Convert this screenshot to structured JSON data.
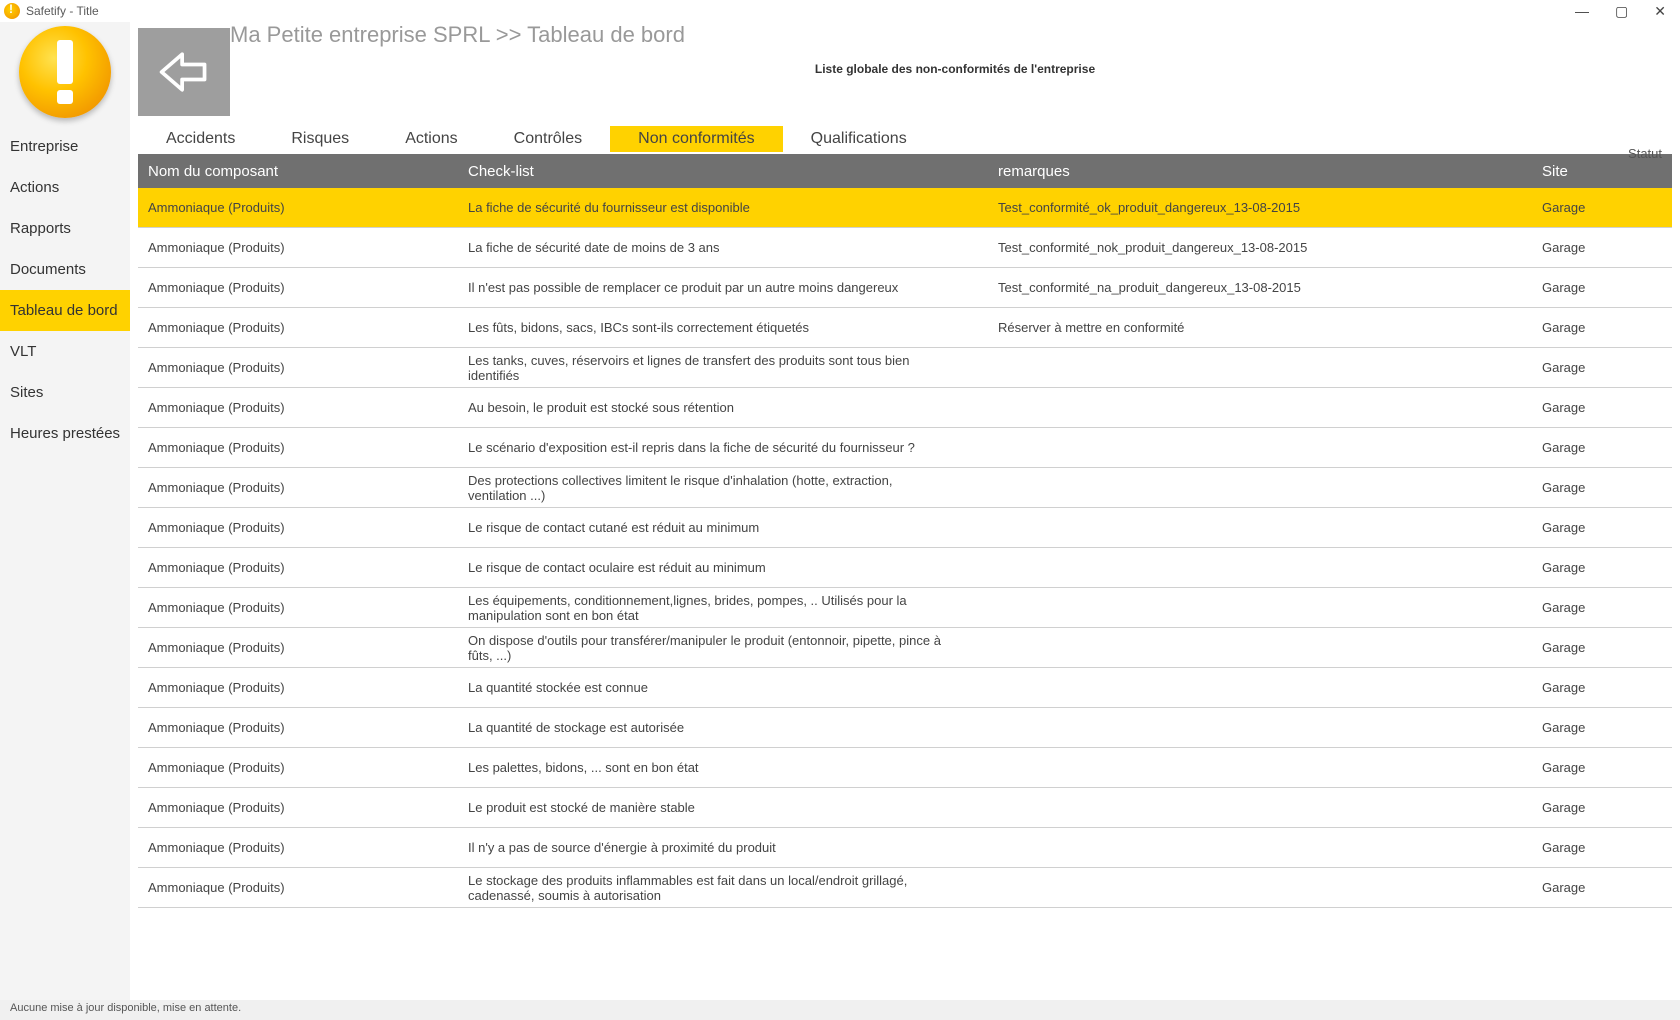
{
  "window": {
    "title": "Safetify - Title"
  },
  "breadcrumb": "Ma Petite entreprise SPRL >> Tableau de bord",
  "list_title": "Liste globale des non-conformités de l'entreprise",
  "statut_label": "Statut",
  "sidebar": {
    "items": [
      {
        "label": "Entreprise",
        "active": false
      },
      {
        "label": "Actions",
        "active": false
      },
      {
        "label": "Rapports",
        "active": false
      },
      {
        "label": "Documents",
        "active": false
      },
      {
        "label": "Tableau de bord",
        "active": true
      },
      {
        "label": "VLT",
        "active": false
      },
      {
        "label": "Sites",
        "active": false
      },
      {
        "label": "Heures prestées",
        "active": false
      }
    ]
  },
  "tabs": [
    {
      "label": "Accidents",
      "active": false
    },
    {
      "label": "Risques",
      "active": false
    },
    {
      "label": "Actions",
      "active": false
    },
    {
      "label": "Contrôles",
      "active": false
    },
    {
      "label": "Non conformités",
      "active": true
    },
    {
      "label": "Qualifications",
      "active": false
    }
  ],
  "table": {
    "columns": {
      "name": "Nom du composant",
      "check": "Check-list",
      "rem": "remarques",
      "site": "Site"
    },
    "rows": [
      {
        "selected": true,
        "name": "Ammoniaque (Produits)",
        "check": "La fiche de sécurité du fournisseur est disponible",
        "rem": "Test_conformité_ok_produit_dangereux_13-08-2015",
        "site": "Garage"
      },
      {
        "selected": false,
        "name": "Ammoniaque (Produits)",
        "check": "La fiche de sécurité date de moins de 3 ans",
        "rem": "Test_conformité_nok_produit_dangereux_13-08-2015",
        "site": "Garage"
      },
      {
        "selected": false,
        "name": "Ammoniaque (Produits)",
        "check": "Il n'est pas possible de remplacer ce produit par un autre moins dangereux",
        "rem": "Test_conformité_na_produit_dangereux_13-08-2015",
        "site": "Garage"
      },
      {
        "selected": false,
        "name": "Ammoniaque (Produits)",
        "check": "Les fûts, bidons, sacs, IBCs sont-ils correctement étiquetés",
        "rem": "Réserver à mettre en conformité",
        "site": "Garage"
      },
      {
        "selected": false,
        "name": "Ammoniaque (Produits)",
        "check": "Les tanks, cuves, réservoirs et lignes de transfert des produits sont tous bien identifiés",
        "rem": "",
        "site": "Garage"
      },
      {
        "selected": false,
        "name": "Ammoniaque (Produits)",
        "check": "Au besoin, le produit est stocké sous rétention",
        "rem": "",
        "site": "Garage"
      },
      {
        "selected": false,
        "name": "Ammoniaque (Produits)",
        "check": "Le scénario d'exposition est-il repris dans la fiche de sécurité du fournisseur ?",
        "rem": "",
        "site": "Garage"
      },
      {
        "selected": false,
        "name": "Ammoniaque (Produits)",
        "check": "Des protections collectives limitent le risque d'inhalation (hotte, extraction, ventilation ...)",
        "rem": "",
        "site": "Garage"
      },
      {
        "selected": false,
        "name": "Ammoniaque (Produits)",
        "check": "Le risque de contact cutané est réduit au minimum",
        "rem": "",
        "site": "Garage"
      },
      {
        "selected": false,
        "name": "Ammoniaque (Produits)",
        "check": "Le risque de contact oculaire est réduit au minimum",
        "rem": "",
        "site": "Garage"
      },
      {
        "selected": false,
        "name": "Ammoniaque (Produits)",
        "check": "Les équipements, conditionnement,lignes, brides, pompes, .. Utilisés pour la manipulation sont en bon état",
        "rem": "",
        "site": "Garage"
      },
      {
        "selected": false,
        "name": "Ammoniaque (Produits)",
        "check": "On dispose d'outils pour transférer/manipuler le produit (entonnoir, pipette, pince à fûts, ...)",
        "rem": "",
        "site": "Garage"
      },
      {
        "selected": false,
        "name": "Ammoniaque (Produits)",
        "check": "La quantité stockée est connue",
        "rem": "",
        "site": "Garage"
      },
      {
        "selected": false,
        "name": "Ammoniaque (Produits)",
        "check": "La quantité de stockage est autorisée",
        "rem": "",
        "site": "Garage"
      },
      {
        "selected": false,
        "name": "Ammoniaque (Produits)",
        "check": "Les palettes, bidons, ... sont en bon état",
        "rem": "",
        "site": "Garage"
      },
      {
        "selected": false,
        "name": "Ammoniaque (Produits)",
        "check": "Le produit est stocké de manière stable",
        "rem": "",
        "site": "Garage"
      },
      {
        "selected": false,
        "name": "Ammoniaque (Produits)",
        "check": "Il n'y a pas de source d'énergie à proximité du produit",
        "rem": "",
        "site": "Garage"
      },
      {
        "selected": false,
        "name": "Ammoniaque (Produits)",
        "check": "Le stockage des produits inflammables est fait dans un local/endroit grillagé, cadenassé, soumis à autorisation",
        "rem": "",
        "site": "Garage"
      }
    ]
  },
  "status_bar": "Aucune mise à jour disponible, mise en attente."
}
